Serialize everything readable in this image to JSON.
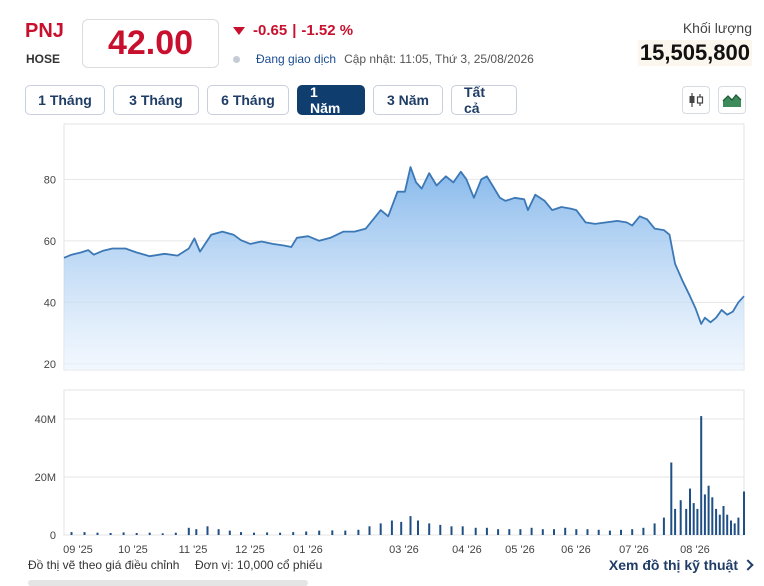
{
  "header": {
    "ticker": "PNJ",
    "exchange": "HOSE",
    "price": "42.00",
    "change": "-0.65",
    "change_pct": "-1.52 %",
    "status": "Đang giao dịch",
    "updated": "Cập nhật: 11:05, Thứ 3, 25/08/2026",
    "volume_label": "Khối lượng",
    "volume": "15,505,800",
    "down_color": "#c8102e"
  },
  "tabs": [
    {
      "label": "1 Tháng",
      "active": false
    },
    {
      "label": "3 Tháng",
      "active": false
    },
    {
      "label": "6 Tháng",
      "active": false
    },
    {
      "label": "1 Năm",
      "active": true
    },
    {
      "label": "3 Năm",
      "active": false
    },
    {
      "label": "Tất cả",
      "active": false
    }
  ],
  "tools": {
    "candlestick": "candlestick-icon",
    "area": "area-chart-icon"
  },
  "chart_data": [
    {
      "type": "area",
      "ylim": [
        18,
        98
      ],
      "yticks": [
        20,
        40,
        60,
        80
      ],
      "x_tick_labels": [
        "09 '25",
        "10 '25",
        "11 '25",
        "12 '25",
        "01 '26",
        "03 '26",
        "04 '26",
        "05 '26",
        "06 '26",
        "07 '26",
        "08 '26"
      ],
      "x_range": [
        "2025-08-25",
        "2026-08-25"
      ],
      "line_color": "#3b78b5",
      "fill_color": "#9cc8f2",
      "points": [
        [
          "2025-08-25",
          54.5
        ],
        [
          "2025-08-29",
          55.5
        ],
        [
          "2025-09-03",
          56.2
        ],
        [
          "2025-09-07",
          57.0
        ],
        [
          "2025-09-10",
          55.5
        ],
        [
          "2025-09-15",
          56.8
        ],
        [
          "2025-09-20",
          57.5
        ],
        [
          "2025-09-27",
          57.5
        ],
        [
          "2025-10-03",
          56.2
        ],
        [
          "2025-10-10",
          55.0
        ],
        [
          "2025-10-18",
          55.8
        ],
        [
          "2025-10-25",
          55.2
        ],
        [
          "2025-10-31",
          57.5
        ],
        [
          "2025-11-03",
          60.8
        ],
        [
          "2025-11-06",
          56.5
        ],
        [
          "2025-11-12",
          62.0
        ],
        [
          "2025-11-18",
          63.0
        ],
        [
          "2025-11-24",
          62.0
        ],
        [
          "2025-11-28",
          60.2
        ],
        [
          "2025-12-03",
          59.0
        ],
        [
          "2025-12-09",
          59.8
        ],
        [
          "2025-12-15",
          59.0
        ],
        [
          "2025-12-21",
          58.5
        ],
        [
          "2025-12-25",
          58.0
        ],
        [
          "2025-12-28",
          61.0
        ],
        [
          "2026-01-03",
          61.5
        ],
        [
          "2026-01-09",
          60.0
        ],
        [
          "2026-01-15",
          61.0
        ],
        [
          "2026-01-22",
          63.0
        ],
        [
          "2026-01-28",
          63.0
        ],
        [
          "2026-02-03",
          64.0
        ],
        [
          "2026-02-07",
          67.0
        ],
        [
          "2026-02-11",
          70.0
        ],
        [
          "2026-02-15",
          68.0
        ],
        [
          "2026-02-20",
          76.0
        ],
        [
          "2026-02-24",
          76.0
        ],
        [
          "2026-02-27",
          84.0
        ],
        [
          "2026-03-02",
          79.0
        ],
        [
          "2026-03-05",
          77.0
        ],
        [
          "2026-03-09",
          82.0
        ],
        [
          "2026-03-13",
          78.0
        ],
        [
          "2026-03-18",
          81.0
        ],
        [
          "2026-03-22",
          79.0
        ],
        [
          "2026-03-26",
          82.5
        ],
        [
          "2026-03-29",
          80.0
        ],
        [
          "2026-04-02",
          74.0
        ],
        [
          "2026-04-06",
          80.0
        ],
        [
          "2026-04-09",
          81.0
        ],
        [
          "2026-04-12",
          78.0
        ],
        [
          "2026-04-16",
          74.0
        ],
        [
          "2026-04-19",
          73.0
        ],
        [
          "2026-04-24",
          74.0
        ],
        [
          "2026-04-29",
          73.5
        ],
        [
          "2026-05-01",
          70.0
        ],
        [
          "2026-05-05",
          75.0
        ],
        [
          "2026-05-10",
          73.0
        ],
        [
          "2026-05-14",
          70.0
        ],
        [
          "2026-05-19",
          71.0
        ],
        [
          "2026-05-24",
          70.5
        ],
        [
          "2026-05-27",
          70.0
        ],
        [
          "2026-06-01",
          66.0
        ],
        [
          "2026-06-06",
          65.5
        ],
        [
          "2026-06-12",
          66.0
        ],
        [
          "2026-06-18",
          66.5
        ],
        [
          "2026-06-23",
          66.0
        ],
        [
          "2026-06-26",
          65.0
        ],
        [
          "2026-06-30",
          68.0
        ],
        [
          "2026-07-04",
          67.0
        ],
        [
          "2026-07-08",
          64.0
        ],
        [
          "2026-07-13",
          63.5
        ],
        [
          "2026-07-16",
          62.0
        ],
        [
          "2026-07-19",
          52.5
        ],
        [
          "2026-07-23",
          47.0
        ],
        [
          "2026-07-27",
          42.0
        ],
        [
          "2026-07-30",
          38.0
        ],
        [
          "2026-08-02",
          33.0
        ],
        [
          "2026-08-04",
          35.0
        ],
        [
          "2026-08-07",
          33.5
        ],
        [
          "2026-08-10",
          35.0
        ],
        [
          "2026-08-13",
          37.5
        ],
        [
          "2026-08-16",
          36.0
        ],
        [
          "2026-08-19",
          37.0
        ],
        [
          "2026-08-22",
          40.0
        ],
        [
          "2026-08-25",
          42.0
        ]
      ]
    },
    {
      "type": "bar",
      "ylim": [
        0,
        50
      ],
      "yticks": [
        0,
        20,
        40
      ],
      "ytick_labels": [
        "0",
        "20M",
        "40M"
      ],
      "unit": "M",
      "bar_color": "#1f4f85",
      "bars": [
        [
          "2025-08-29",
          1.0
        ],
        [
          "2025-09-05",
          1.0
        ],
        [
          "2025-09-12",
          0.8
        ],
        [
          "2025-09-19",
          0.7
        ],
        [
          "2025-09-26",
          0.9
        ],
        [
          "2025-10-03",
          0.7
        ],
        [
          "2025-10-10",
          0.8
        ],
        [
          "2025-10-17",
          0.6
        ],
        [
          "2025-10-24",
          0.8
        ],
        [
          "2025-10-31",
          2.5
        ],
        [
          "2025-11-04",
          2.0
        ],
        [
          "2025-11-10",
          3.0
        ],
        [
          "2025-11-16",
          2.0
        ],
        [
          "2025-11-22",
          1.5
        ],
        [
          "2025-11-28",
          1.0
        ],
        [
          "2025-12-05",
          0.8
        ],
        [
          "2025-12-12",
          0.9
        ],
        [
          "2025-12-19",
          0.8
        ],
        [
          "2025-12-26",
          1.0
        ],
        [
          "2026-01-02",
          1.2
        ],
        [
          "2026-01-09",
          1.5
        ],
        [
          "2026-01-16",
          1.6
        ],
        [
          "2026-01-23",
          1.5
        ],
        [
          "2026-01-30",
          1.8
        ],
        [
          "2026-02-05",
          3.0
        ],
        [
          "2026-02-11",
          4.0
        ],
        [
          "2026-02-17",
          5.0
        ],
        [
          "2026-02-22",
          4.5
        ],
        [
          "2026-02-27",
          6.5
        ],
        [
          "2026-03-03",
          5.0
        ],
        [
          "2026-03-09",
          4.0
        ],
        [
          "2026-03-15",
          3.5
        ],
        [
          "2026-03-21",
          3.0
        ],
        [
          "2026-03-27",
          3.0
        ],
        [
          "2026-04-03",
          2.5
        ],
        [
          "2026-04-09",
          2.5
        ],
        [
          "2026-04-15",
          2.0
        ],
        [
          "2026-04-21",
          2.0
        ],
        [
          "2026-04-27",
          2.0
        ],
        [
          "2026-05-03",
          2.5
        ],
        [
          "2026-05-09",
          2.0
        ],
        [
          "2026-05-15",
          2.0
        ],
        [
          "2026-05-21",
          2.5
        ],
        [
          "2026-05-27",
          2.0
        ],
        [
          "2026-06-02",
          2.0
        ],
        [
          "2026-06-08",
          1.8
        ],
        [
          "2026-06-14",
          1.5
        ],
        [
          "2026-06-20",
          1.8
        ],
        [
          "2026-06-26",
          2.0
        ],
        [
          "2026-07-02",
          2.5
        ],
        [
          "2026-07-08",
          4.0
        ],
        [
          "2026-07-13",
          6.0
        ],
        [
          "2026-07-17",
          25.0
        ],
        [
          "2026-07-19",
          9.0
        ],
        [
          "2026-07-22",
          12.0
        ],
        [
          "2026-07-25",
          9.0
        ],
        [
          "2026-07-27",
          16.0
        ],
        [
          "2026-07-29",
          11.0
        ],
        [
          "2026-07-31",
          9.0
        ],
        [
          "2026-08-02",
          41.0
        ],
        [
          "2026-08-04",
          14.0
        ],
        [
          "2026-08-06",
          17.0
        ],
        [
          "2026-08-08",
          13.0
        ],
        [
          "2026-08-10",
          9.0
        ],
        [
          "2026-08-12",
          7.0
        ],
        [
          "2026-08-14",
          10.0
        ],
        [
          "2026-08-16",
          7.0
        ],
        [
          "2026-08-18",
          5.0
        ],
        [
          "2026-08-20",
          4.0
        ],
        [
          "2026-08-22",
          6.0
        ],
        [
          "2026-08-25",
          15.0
        ]
      ]
    }
  ],
  "footer": {
    "adjusted_note": "Đồ thị vẽ theo giá điều chỉnh",
    "unit_note": "Đơn vị: 10,000 cổ phiếu",
    "technical_link": "Xem đồ thị kỹ thuật"
  }
}
